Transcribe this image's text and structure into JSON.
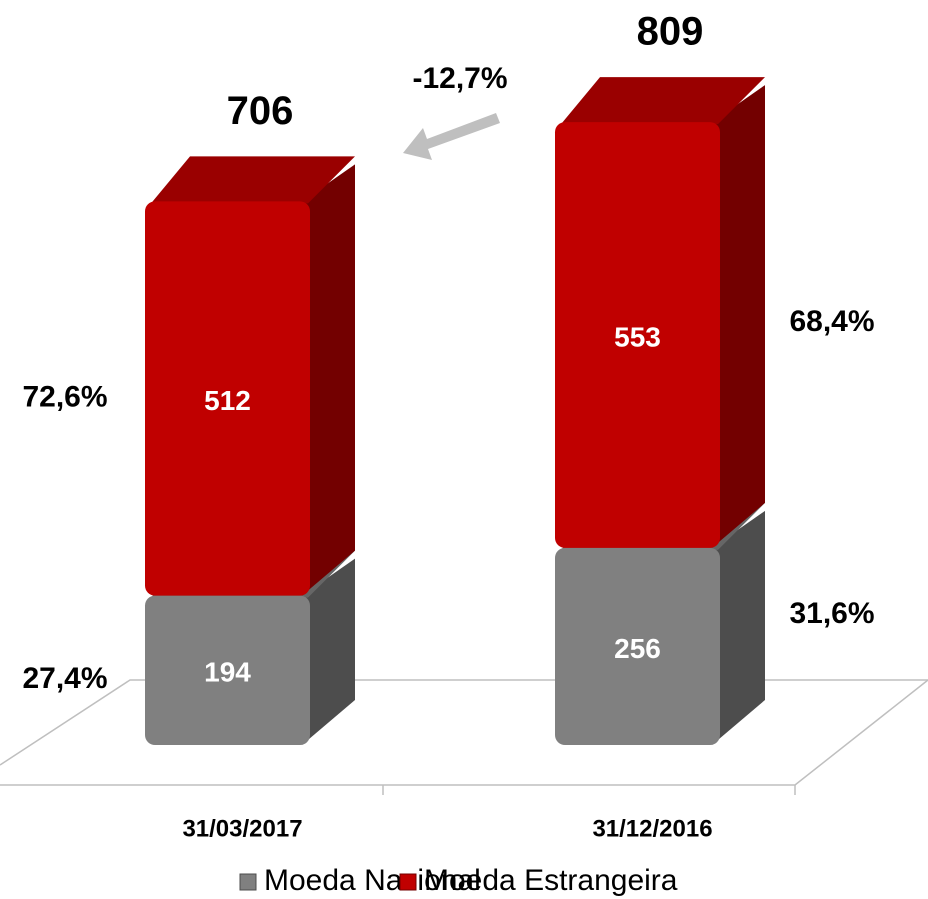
{
  "chart_data": {
    "type": "bar",
    "stacked": true,
    "categories": [
      "31/03/2017",
      "31/12/2016"
    ],
    "series": [
      {
        "name": "Moeda Nacional",
        "color": "#808080",
        "values": [
          194,
          256
        ],
        "shares": [
          27.4,
          31.6
        ],
        "share_labels": [
          "27,4%",
          "31,6%"
        ]
      },
      {
        "name": "Moeda Estrangeira",
        "color": "#c00000",
        "values": [
          512,
          553
        ],
        "shares": [
          72.6,
          68.4
        ],
        "share_labels": [
          "72,6%",
          "68,4%"
        ]
      }
    ],
    "totals": [
      706,
      809
    ],
    "change": -12.7,
    "change_label": "-12,7%",
    "ylim": [
      0,
      900
    ]
  }
}
